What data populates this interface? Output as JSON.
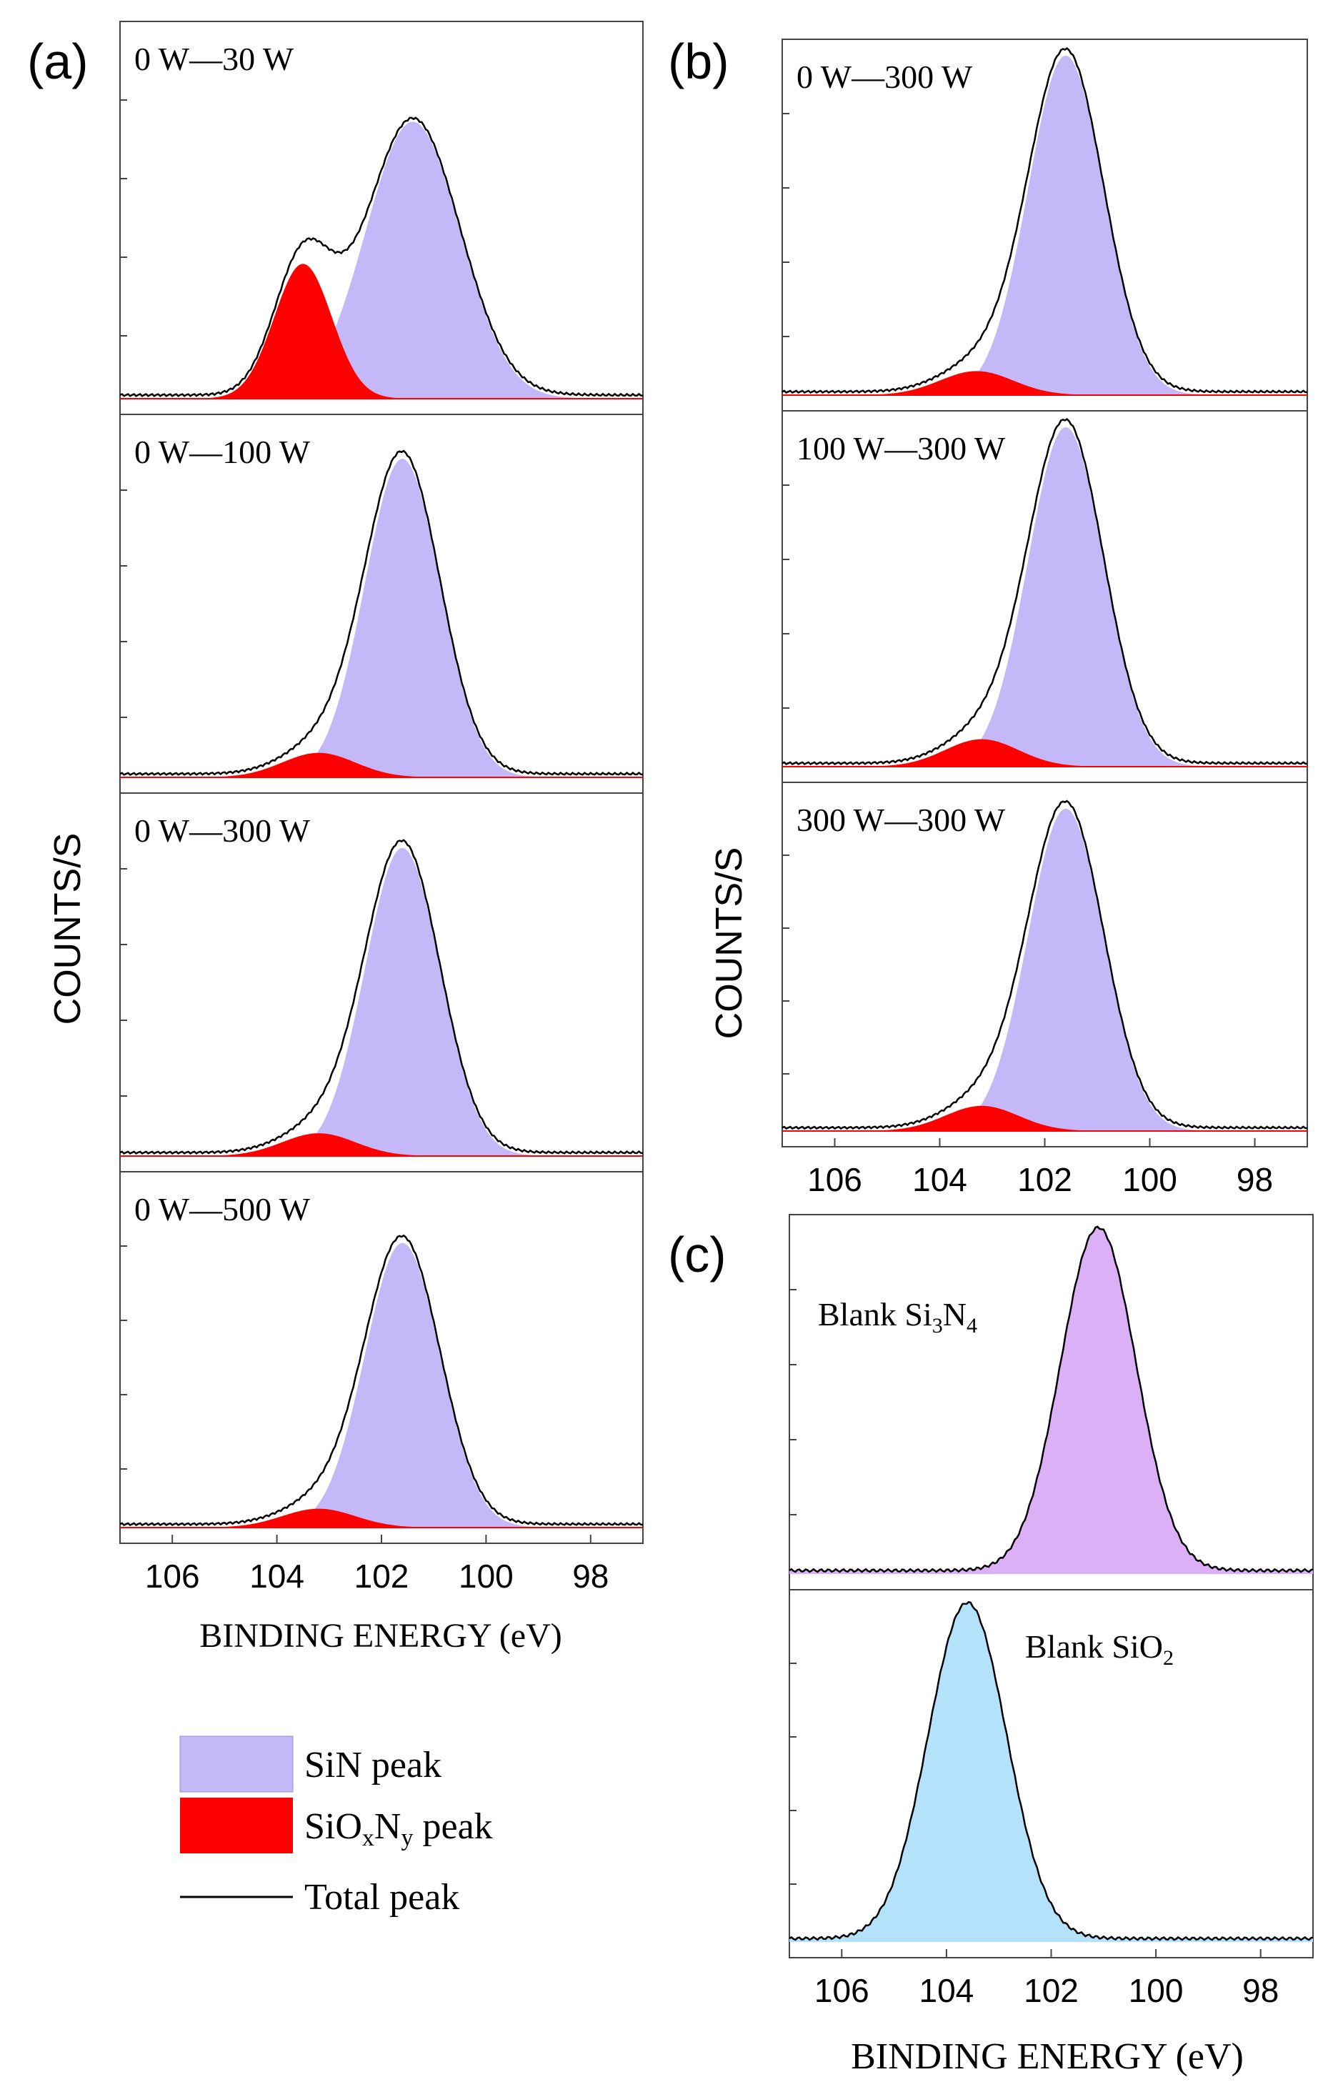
{
  "figure": {
    "panel_letters": [
      "(a)",
      "(b)",
      "(c)"
    ],
    "ylabel_a": "COUNTS/S",
    "ylabel_b": "COUNTS/S",
    "xlabel_a": "BINDING ENERGY (eV)",
    "xlabel_c": "BINDING ENERGY (eV)"
  },
  "legend": {
    "items": [
      {
        "label": "SiN peak",
        "color": "#c4b8f8",
        "kind": "fill"
      },
      {
        "label": "SiOxNy peak",
        "color": "#ff0000",
        "kind": "fill"
      },
      {
        "label": "Total peak",
        "color": "#000000",
        "kind": "line"
      }
    ]
  },
  "colors": {
    "sin_fill": "#c4b8f8",
    "sioxny_fill": "#ff0000",
    "total_line": "#000000",
    "si3n4_fill": "#dcb0f7",
    "sio2_fill": "#b4e2fa"
  },
  "chart_data": [
    {
      "type": "area",
      "panel": "(a)",
      "subplot": "0 W—30 W",
      "label_line": "0 W—30 W",
      "xlabel": "",
      "ylabel": "COUNTS/S",
      "xlim": [
        107,
        97
      ],
      "series": [
        {
          "name": "SiN peak",
          "center": 101.4,
          "height": 0.76,
          "width": 0.9
        },
        {
          "name": "SiOxNy peak",
          "center": 103.5,
          "height": 0.37,
          "width": 0.55
        },
        {
          "name": "Total peak",
          "note": "sum of components"
        }
      ]
    },
    {
      "type": "area",
      "panel": "(a)",
      "subplot": "0 W—100 W",
      "label_line": "0 W—100 W",
      "xlabel": "",
      "ylabel": "COUNTS/S",
      "xlim": [
        107,
        97
      ],
      "series": [
        {
          "name": "SiN peak",
          "center": 101.6,
          "height": 0.91,
          "width": 0.72
        },
        {
          "name": "SiOxNy peak",
          "center": 103.2,
          "height": 0.07,
          "width": 0.7
        },
        {
          "name": "Total peak",
          "note": "sum of components"
        }
      ]
    },
    {
      "type": "area",
      "panel": "(a)",
      "subplot": "0 W—300 W",
      "label_line": "0 W—300 W",
      "xlabel": "",
      "ylabel": "COUNTS/S",
      "xlim": [
        107,
        97
      ],
      "series": [
        {
          "name": "SiN peak",
          "center": 101.6,
          "height": 0.88,
          "width": 0.72
        },
        {
          "name": "SiOxNy peak",
          "center": 103.2,
          "height": 0.065,
          "width": 0.7
        },
        {
          "name": "Total peak",
          "note": "sum of components"
        }
      ]
    },
    {
      "type": "area",
      "panel": "(a)",
      "subplot": "0 W—500 W",
      "label_line": "0 W—500 W",
      "xlabel": "BINDING ENERGY (eV)",
      "ylabel": "COUNTS/S",
      "xlim": [
        107,
        97
      ],
      "xticks": [
        "106",
        "104",
        "102",
        "100",
        "98"
      ],
      "series": [
        {
          "name": "SiN peak",
          "center": 101.6,
          "height": 0.83,
          "width": 0.72
        },
        {
          "name": "SiOxNy peak",
          "center": 103.2,
          "height": 0.055,
          "width": 0.7
        },
        {
          "name": "Total peak",
          "note": "sum of components"
        }
      ]
    },
    {
      "type": "area",
      "panel": "(b)",
      "subplot": "0 W—300 W",
      "label_line": "0 W—300 W",
      "xlabel": "",
      "ylabel": "COUNTS/S",
      "xlim": [
        107,
        97
      ],
      "series": [
        {
          "name": "SiN peak",
          "center": 101.6,
          "height": 0.99,
          "width": 0.72
        },
        {
          "name": "SiOxNy peak",
          "center": 103.3,
          "height": 0.07,
          "width": 0.7
        },
        {
          "name": "Total peak",
          "note": "sum of components"
        }
      ]
    },
    {
      "type": "area",
      "panel": "(b)",
      "subplot": "100 W—300 W",
      "label_line": "100 W—300 W",
      "xlabel": "",
      "ylabel": "COUNTS/S",
      "xlim": [
        107,
        97
      ],
      "series": [
        {
          "name": "SiN peak",
          "center": 101.6,
          "height": 0.99,
          "width": 0.72
        },
        {
          "name": "SiOxNy peak",
          "center": 103.2,
          "height": 0.08,
          "width": 0.7
        },
        {
          "name": "Total peak",
          "note": "sum of components"
        }
      ]
    },
    {
      "type": "area",
      "panel": "(b)",
      "subplot": "300 W—300 W",
      "label_line": "300 W—300 W",
      "xlabel": "",
      "ylabel": "COUNTS/S",
      "xlim": [
        107,
        97
      ],
      "xticks": [
        "106",
        "104",
        "102",
        "100",
        "98"
      ],
      "series": [
        {
          "name": "SiN peak",
          "center": 101.6,
          "height": 0.96,
          "width": 0.72
        },
        {
          "name": "SiOxNy peak",
          "center": 103.2,
          "height": 0.075,
          "width": 0.7
        },
        {
          "name": "Total peak",
          "note": "sum of components"
        }
      ]
    },
    {
      "type": "area",
      "panel": "(c)",
      "subplot": "Blank Si3N4",
      "label_main": "Blank Si",
      "label_sub1": "3",
      "label_mid": "N",
      "label_sub2": "4",
      "xlabel": "",
      "ylabel": "",
      "xlim": [
        107,
        97
      ],
      "series": [
        {
          "name": "Blank Si3N4",
          "center": 101.1,
          "height": 0.99,
          "width": 0.72
        }
      ]
    },
    {
      "type": "area",
      "panel": "(c)",
      "subplot": "Blank SiO2",
      "label_main": "Blank SiO",
      "label_sub1": "2",
      "xlabel": "BINDING ENERGY (eV)",
      "ylabel": "",
      "xlim": [
        107,
        97
      ],
      "xticks": [
        "106",
        "104",
        "102",
        "100",
        "98"
      ],
      "series": [
        {
          "name": "Blank SiO2",
          "center": 103.6,
          "height": 0.99,
          "width": 0.75
        }
      ]
    }
  ]
}
